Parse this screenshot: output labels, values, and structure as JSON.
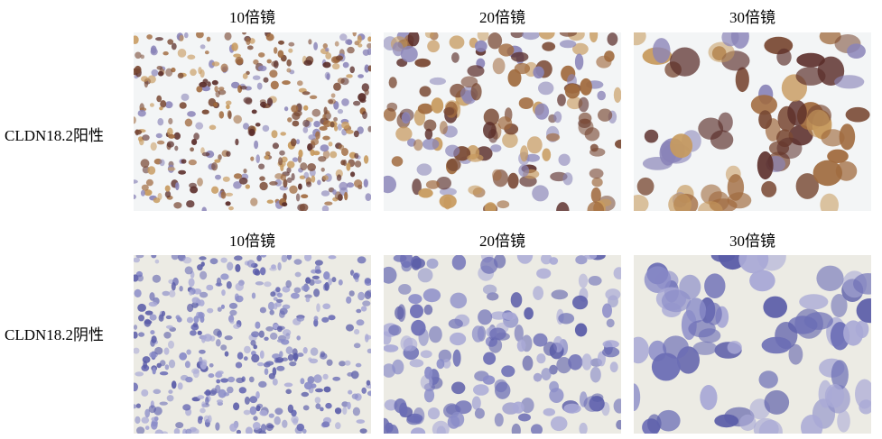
{
  "columns": [
    "10倍镜",
    "20倍镜",
    "30倍镜"
  ],
  "rows": [
    {
      "label": "CLDN18.2阳性",
      "stain": "positive",
      "background": "#f3f5f6",
      "cell_colors": [
        "#7a4a35",
        "#a06a3e",
        "#5b2e2a",
        "#8a84b8",
        "#c79a5e"
      ]
    },
    {
      "label": "CLDN18.2阴性",
      "stain": "negative",
      "background": "#ecebe4",
      "cell_colors": [
        "#6b6db5",
        "#8a8cc8",
        "#a9a9d6",
        "#5a5ca8"
      ]
    }
  ]
}
